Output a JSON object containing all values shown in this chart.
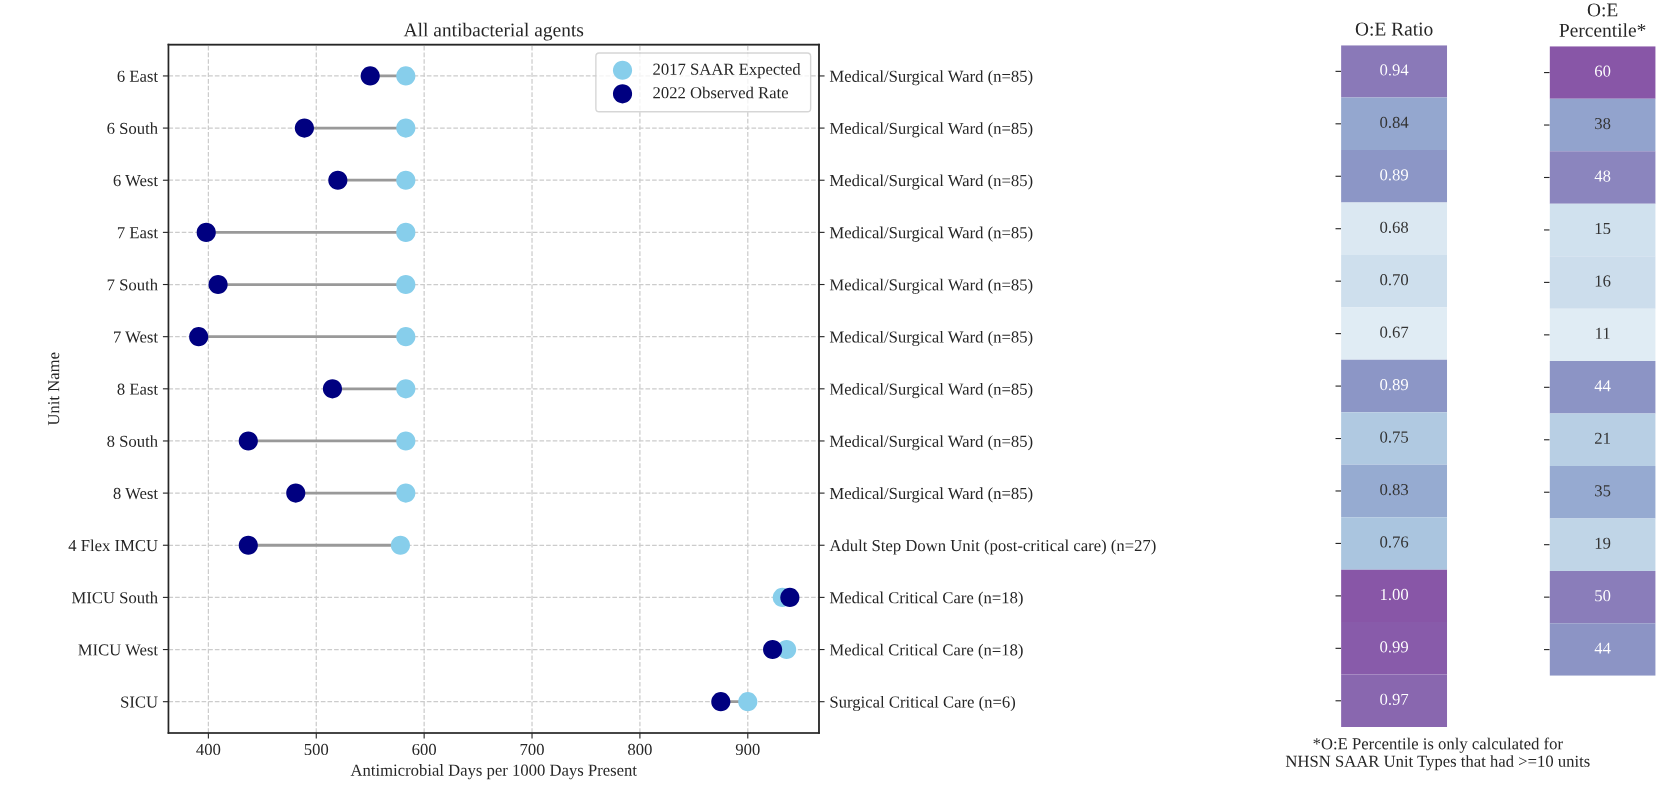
{
  "chart_data": [
    {
      "type": "scatter",
      "title": "All antibacterial agents",
      "xlabel": "Antimicrobial Days per 1000 Days Present",
      "ylabel": "Unit Name",
      "orientation": "horizontal",
      "categories": [
        "6 East",
        "6 South",
        "6 West",
        "7 East",
        "7 South",
        "7 West",
        "8 East",
        "8 South",
        "8 West",
        "4 Flex IMCU",
        "MICU South",
        "MICU West",
        "SICU"
      ],
      "y2_categories": [
        "Medical/Surgical Ward (n=85)",
        "Medical/Surgical Ward (n=85)",
        "Medical/Surgical Ward (n=85)",
        "Medical/Surgical Ward (n=85)",
        "Medical/Surgical Ward (n=85)",
        "Medical/Surgical Ward (n=85)",
        "Medical/Surgical Ward (n=85)",
        "Medical/Surgical Ward (n=85)",
        "Medical/Surgical Ward (n=85)",
        "Adult Step Down Unit (post-critical care) (n=27)",
        "Medical Critical Care (n=18)",
        "Medical Critical Care (n=18)",
        "Surgical Critical Care (n=6)"
      ],
      "series": [
        {
          "name": "2017 SAAR Expected",
          "color": "#87ceeb",
          "values": [
            583,
            583,
            583,
            583,
            583,
            583,
            583,
            583,
            583,
            578,
            932,
            936,
            900
          ]
        },
        {
          "name": "2022 Observed Rate",
          "color": "#000080",
          "values": [
            550,
            489,
            520,
            398,
            409,
            391,
            515,
            437,
            481,
            437,
            939,
            923,
            875
          ]
        }
      ],
      "xlim": [
        363,
        966
      ],
      "xticks": [
        400,
        500,
        600,
        700,
        800,
        900
      ],
      "grid": true,
      "legend": "top right",
      "marker": "circle"
    },
    {
      "type": "heatmap",
      "categories": [
        "O:E Ratio"
      ],
      "y_categories": [
        null,
        null,
        null,
        null,
        null,
        null,
        null,
        null,
        null,
        null,
        null,
        null,
        null
      ],
      "cells": [
        [
          0.94
        ],
        [
          0.84
        ],
        [
          0.89
        ],
        [
          0.68
        ],
        [
          0.7
        ],
        [
          0.67
        ],
        [
          0.89
        ],
        [
          0.75
        ],
        [
          0.83
        ],
        [
          0.76
        ],
        [
          1.0
        ],
        [
          0.99
        ],
        [
          0.97
        ]
      ],
      "cell_labels": [
        [
          "0.94"
        ],
        [
          "0.84"
        ],
        [
          "0.89"
        ],
        [
          "0.68"
        ],
        [
          "0.70"
        ],
        [
          "0.67"
        ],
        [
          "0.89"
        ],
        [
          "0.75"
        ],
        [
          "0.83"
        ],
        [
          "0.76"
        ],
        [
          "1.00"
        ],
        [
          "0.99"
        ],
        [
          "0.97"
        ]
      ]
    },
    {
      "type": "heatmap",
      "categories": [
        "O:E\nPercentile*"
      ],
      "y_categories": [
        null,
        null,
        null,
        null,
        null,
        null,
        null,
        null,
        null,
        null,
        null,
        null
      ],
      "cells": [
        [
          60
        ],
        [
          38
        ],
        [
          48
        ],
        [
          15
        ],
        [
          16
        ],
        [
          11
        ],
        [
          44
        ],
        [
          21
        ],
        [
          35
        ],
        [
          19
        ],
        [
          50
        ],
        [
          44
        ]
      ],
      "cell_labels": [
        [
          "60"
        ],
        [
          "38"
        ],
        [
          "48"
        ],
        [
          "15"
        ],
        [
          "16"
        ],
        [
          "11"
        ],
        [
          "44"
        ],
        [
          "21"
        ],
        [
          "35"
        ],
        [
          "19"
        ],
        [
          "50"
        ],
        [
          "44"
        ]
      ],
      "annotations": [
        "*O:E Percentile is only calculated for\nNHSN SAAR Unit Types that had >=10 units"
      ]
    }
  ]
}
